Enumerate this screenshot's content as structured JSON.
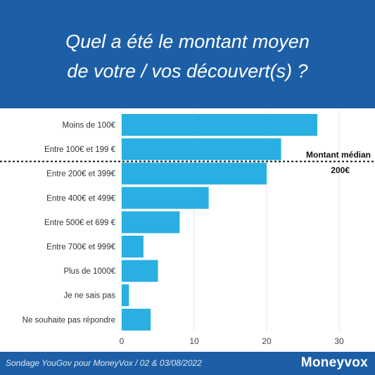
{
  "header": {
    "title_line1": "Quel a été le montant moyen",
    "title_line2": "de votre / vos découvert(s) ?"
  },
  "footer": {
    "source": "Sondage YouGov pour MoneyVox / 02 & 03/08/2022",
    "brand": "Moneyvox"
  },
  "colors": {
    "header_bg": "#1d5fa6",
    "bar": "#29afe2",
    "text": "#333333"
  },
  "chart_data": {
    "type": "bar",
    "orientation": "horizontal",
    "categories": [
      "Moins de 100€",
      "Entre 100€ et 199 €",
      "Entre 200€ et 399€",
      "Entre 400€ et 499€",
      "Entre 500€ et 699 €",
      "Entre 700€ et 999€",
      "Plus de 1000€",
      "Je ne sais pas",
      "Ne souhaite pas répondre"
    ],
    "values": [
      27,
      22,
      20,
      12,
      8,
      3,
      5,
      1,
      4
    ],
    "xlim": [
      0,
      32
    ],
    "xticks": [
      0,
      10,
      20,
      30
    ],
    "grid": true,
    "median_annotation": {
      "label": "Montant médian",
      "value": "200€"
    }
  }
}
